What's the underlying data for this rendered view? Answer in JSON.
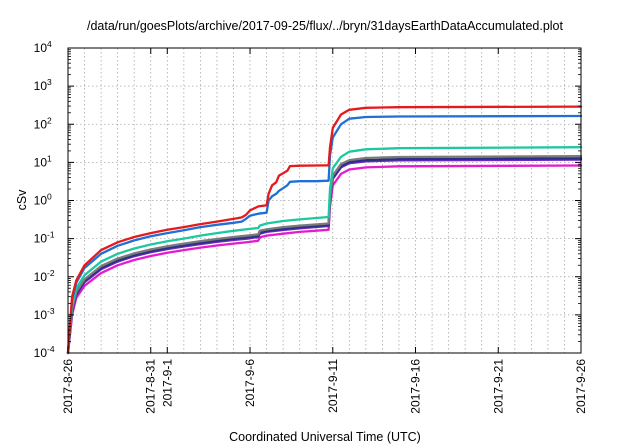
{
  "chart_data": {
    "type": "line",
    "title": "/data/run/goesPlots/archive/2017-09-25/flux/../bryn/31daysEarthDataAccumulated.plot",
    "xlabel": "Coordinated Universal Time (UTC)",
    "ylabel": "cSv",
    "x_scale": "time",
    "y_scale": "log",
    "xlim": [
      "2017-08-26",
      "2017-09-26"
    ],
    "ylim": [
      0.0001,
      10000
    ],
    "grid": true,
    "legend": "none",
    "x_ticks": [
      {
        "x": "2017-08-26",
        "label": "2017-8-26"
      },
      {
        "x": "2017-08-31",
        "label": "2017-8-31"
      },
      {
        "x": "2017-09-01",
        "label": "2017-9-1"
      },
      {
        "x": "2017-09-06",
        "label": "2017-9-6"
      },
      {
        "x": "2017-09-11",
        "label": "2017-9-11"
      },
      {
        "x": "2017-09-16",
        "label": "2017-9-16"
      },
      {
        "x": "2017-09-21",
        "label": "2017-9-21"
      },
      {
        "x": "2017-09-26",
        "label": "2017-9-26"
      }
    ],
    "y_ticks": [
      {
        "value": 0.0001,
        "base": "10",
        "exp": "-4"
      },
      {
        "value": 0.001,
        "base": "10",
        "exp": "-3"
      },
      {
        "value": 0.01,
        "base": "10",
        "exp": "-2"
      },
      {
        "value": 0.1,
        "base": "10",
        "exp": "-1"
      },
      {
        "value": 1,
        "base": "10",
        "exp": "0"
      },
      {
        "value": 10,
        "base": "10",
        "exp": "1"
      },
      {
        "value": 100,
        "base": "10",
        "exp": "2"
      },
      {
        "value": 1000,
        "base": "10",
        "exp": "3"
      },
      {
        "value": 10000,
        "base": "10",
        "exp": "4"
      }
    ],
    "series": [
      {
        "color": "#e41a1c",
        "points": [
          [
            "2017-08-26T00:00",
            0.0001
          ],
          [
            "2017-08-26T06:00",
            0.003
          ],
          [
            "2017-08-26T12:00",
            0.008
          ],
          [
            "2017-08-27T00:00",
            0.02
          ],
          [
            "2017-08-28T00:00",
            0.05
          ],
          [
            "2017-08-29T00:00",
            0.08
          ],
          [
            "2017-08-30T00:00",
            0.11
          ],
          [
            "2017-08-31T00:00",
            0.14
          ],
          [
            "2017-09-01T00:00",
            0.17
          ],
          [
            "2017-09-02T00:00",
            0.2
          ],
          [
            "2017-09-03T00:00",
            0.24
          ],
          [
            "2017-09-04T00:00",
            0.28
          ],
          [
            "2017-09-05T00:00",
            0.33
          ],
          [
            "2017-09-05T12:00",
            0.36
          ],
          [
            "2017-09-05T18:00",
            0.42
          ],
          [
            "2017-09-06T00:00",
            0.55
          ],
          [
            "2017-09-06T12:00",
            0.7
          ],
          [
            "2017-09-07T00:00",
            0.75
          ],
          [
            "2017-09-07T03:00",
            1.5
          ],
          [
            "2017-09-07T08:00",
            2.5
          ],
          [
            "2017-09-07T14:00",
            3.0
          ],
          [
            "2017-09-07T18:00",
            4.5
          ],
          [
            "2017-09-08T00:00",
            5.2
          ],
          [
            "2017-09-08T06:00",
            6.0
          ],
          [
            "2017-09-08T10:00",
            8.0
          ],
          [
            "2017-09-09T00:00",
            8.2
          ],
          [
            "2017-09-10T00:00",
            8.3
          ],
          [
            "2017-09-10T18:00",
            8.4
          ],
          [
            "2017-09-10T20:00",
            25
          ],
          [
            "2017-09-11T00:00",
            80
          ],
          [
            "2017-09-11T12:00",
            180
          ],
          [
            "2017-09-12T00:00",
            240
          ],
          [
            "2017-09-13T00:00",
            270
          ],
          [
            "2017-09-15T00:00",
            280
          ],
          [
            "2017-09-26T00:00",
            290
          ]
        ]
      },
      {
        "color": "#1f6fd6",
        "points": [
          [
            "2017-08-26T00:00",
            0.0001
          ],
          [
            "2017-08-26T06:00",
            0.0025
          ],
          [
            "2017-08-26T12:00",
            0.007
          ],
          [
            "2017-08-27T00:00",
            0.017
          ],
          [
            "2017-08-28T00:00",
            0.04
          ],
          [
            "2017-08-29T00:00",
            0.065
          ],
          [
            "2017-08-30T00:00",
            0.09
          ],
          [
            "2017-08-31T00:00",
            0.115
          ],
          [
            "2017-09-01T00:00",
            0.14
          ],
          [
            "2017-09-02T00:00",
            0.165
          ],
          [
            "2017-09-03T00:00",
            0.2
          ],
          [
            "2017-09-04T00:00",
            0.23
          ],
          [
            "2017-09-05T00:00",
            0.26
          ],
          [
            "2017-09-05T12:00",
            0.28
          ],
          [
            "2017-09-05T18:00",
            0.33
          ],
          [
            "2017-09-06T00:00",
            0.4
          ],
          [
            "2017-09-06T12:00",
            0.45
          ],
          [
            "2017-09-07T00:00",
            0.48
          ],
          [
            "2017-09-07T03:00",
            1.0
          ],
          [
            "2017-09-07T08:00",
            1.3
          ],
          [
            "2017-09-07T14:00",
            1.5
          ],
          [
            "2017-09-07T18:00",
            1.8
          ],
          [
            "2017-09-08T00:00",
            2.1
          ],
          [
            "2017-09-08T06:00",
            2.5
          ],
          [
            "2017-09-08T10:00",
            3.1
          ],
          [
            "2017-09-09T00:00",
            3.2
          ],
          [
            "2017-09-10T00:00",
            3.2
          ],
          [
            "2017-09-10T18:00",
            3.3
          ],
          [
            "2017-09-10T20:00",
            15
          ],
          [
            "2017-09-11T00:00",
            45
          ],
          [
            "2017-09-11T12:00",
            100
          ],
          [
            "2017-09-12T00:00",
            140
          ],
          [
            "2017-09-13T00:00",
            155
          ],
          [
            "2017-09-15T00:00",
            160
          ],
          [
            "2017-09-26T00:00",
            165
          ]
        ]
      },
      {
        "color": "#1dc8a0",
        "points": [
          [
            "2017-08-26T00:00",
            0.0001
          ],
          [
            "2017-08-26T06:00",
            0.0018
          ],
          [
            "2017-08-26T12:00",
            0.005
          ],
          [
            "2017-08-27T00:00",
            0.011
          ],
          [
            "2017-08-28T00:00",
            0.025
          ],
          [
            "2017-08-29T00:00",
            0.04
          ],
          [
            "2017-08-30T00:00",
            0.055
          ],
          [
            "2017-08-31T00:00",
            0.07
          ],
          [
            "2017-09-01T00:00",
            0.085
          ],
          [
            "2017-09-02T00:00",
            0.1
          ],
          [
            "2017-09-03T00:00",
            0.12
          ],
          [
            "2017-09-04T00:00",
            0.14
          ],
          [
            "2017-09-05T00:00",
            0.16
          ],
          [
            "2017-09-06T00:00",
            0.18
          ],
          [
            "2017-09-06T12:00",
            0.19
          ],
          [
            "2017-09-06T14:00",
            0.22
          ],
          [
            "2017-09-07T00:00",
            0.25
          ],
          [
            "2017-09-08T00:00",
            0.29
          ],
          [
            "2017-09-09T00:00",
            0.32
          ],
          [
            "2017-09-10T18:00",
            0.37
          ],
          [
            "2017-09-10T20:00",
            2.0
          ],
          [
            "2017-09-11T00:00",
            7
          ],
          [
            "2017-09-11T12:00",
            14
          ],
          [
            "2017-09-12T00:00",
            19
          ],
          [
            "2017-09-13T00:00",
            22
          ],
          [
            "2017-09-15T00:00",
            23.5
          ],
          [
            "2017-09-26T00:00",
            25
          ]
        ]
      },
      {
        "color": "#7a7a7a",
        "points": [
          [
            "2017-08-26T00:00",
            0.0001
          ],
          [
            "2017-08-26T06:00",
            0.0014
          ],
          [
            "2017-08-26T12:00",
            0.004
          ],
          [
            "2017-08-27T00:00",
            0.0085
          ],
          [
            "2017-08-28T00:00",
            0.019
          ],
          [
            "2017-08-29T00:00",
            0.03
          ],
          [
            "2017-08-30T00:00",
            0.041
          ],
          [
            "2017-08-31T00:00",
            0.052
          ],
          [
            "2017-09-01T00:00",
            0.063
          ],
          [
            "2017-09-02T00:00",
            0.074
          ],
          [
            "2017-09-03T00:00",
            0.086
          ],
          [
            "2017-09-04T00:00",
            0.098
          ],
          [
            "2017-09-05T00:00",
            0.11
          ],
          [
            "2017-09-06T00:00",
            0.122
          ],
          [
            "2017-09-06T12:00",
            0.13
          ],
          [
            "2017-09-06T14:00",
            0.16
          ],
          [
            "2017-09-07T00:00",
            0.175
          ],
          [
            "2017-09-08T00:00",
            0.2
          ],
          [
            "2017-09-09T00:00",
            0.22
          ],
          [
            "2017-09-10T18:00",
            0.25
          ],
          [
            "2017-09-10T20:00",
            1.2
          ],
          [
            "2017-09-11T00:00",
            4.5
          ],
          [
            "2017-09-11T12:00",
            9
          ],
          [
            "2017-09-12T00:00",
            11.5
          ],
          [
            "2017-09-13T00:00",
            13
          ],
          [
            "2017-09-15T00:00",
            13.8
          ],
          [
            "2017-09-26T00:00",
            14.5
          ]
        ]
      },
      {
        "color": "#2a2f80",
        "points": [
          [
            "2017-08-26T00:00",
            0.0001
          ],
          [
            "2017-08-26T06:00",
            0.0013
          ],
          [
            "2017-08-26T12:00",
            0.0036
          ],
          [
            "2017-08-27T00:00",
            0.0078
          ],
          [
            "2017-08-28T00:00",
            0.017
          ],
          [
            "2017-08-29T00:00",
            0.027
          ],
          [
            "2017-08-30T00:00",
            0.037
          ],
          [
            "2017-08-31T00:00",
            0.047
          ],
          [
            "2017-09-01T00:00",
            0.057
          ],
          [
            "2017-09-02T00:00",
            0.067
          ],
          [
            "2017-09-03T00:00",
            0.078
          ],
          [
            "2017-09-04T00:00",
            0.089
          ],
          [
            "2017-09-05T00:00",
            0.1
          ],
          [
            "2017-09-06T00:00",
            0.11
          ],
          [
            "2017-09-06T12:00",
            0.118
          ],
          [
            "2017-09-06T14:00",
            0.145
          ],
          [
            "2017-09-07T00:00",
            0.16
          ],
          [
            "2017-09-08T00:00",
            0.18
          ],
          [
            "2017-09-09T00:00",
            0.2
          ],
          [
            "2017-09-10T18:00",
            0.23
          ],
          [
            "2017-09-10T20:00",
            1.1
          ],
          [
            "2017-09-11T00:00",
            4.0
          ],
          [
            "2017-09-11T12:00",
            8.0
          ],
          [
            "2017-09-12T00:00",
            10.2
          ],
          [
            "2017-09-13T00:00",
            11.5
          ],
          [
            "2017-09-15T00:00",
            12.2
          ],
          [
            "2017-09-26T00:00",
            12.8
          ]
        ]
      },
      {
        "color": "#6a2ac0",
        "points": [
          [
            "2017-08-26T00:00",
            0.0001
          ],
          [
            "2017-08-26T06:00",
            0.0012
          ],
          [
            "2017-08-26T12:00",
            0.0033
          ],
          [
            "2017-08-27T00:00",
            0.0072
          ],
          [
            "2017-08-28T00:00",
            0.0158
          ],
          [
            "2017-08-29T00:00",
            0.025
          ],
          [
            "2017-08-30T00:00",
            0.0345
          ],
          [
            "2017-08-31T00:00",
            0.044
          ],
          [
            "2017-09-01T00:00",
            0.053
          ],
          [
            "2017-09-02T00:00",
            0.062
          ],
          [
            "2017-09-03T00:00",
            0.072
          ],
          [
            "2017-09-04T00:00",
            0.082
          ],
          [
            "2017-09-05T00:00",
            0.092
          ],
          [
            "2017-09-06T00:00",
            0.102
          ],
          [
            "2017-09-06T12:00",
            0.11
          ],
          [
            "2017-09-06T14:00",
            0.135
          ],
          [
            "2017-09-07T00:00",
            0.15
          ],
          [
            "2017-09-08T00:00",
            0.168
          ],
          [
            "2017-09-09T00:00",
            0.186
          ],
          [
            "2017-09-10T18:00",
            0.215
          ],
          [
            "2017-09-10T20:00",
            1.0
          ],
          [
            "2017-09-11T00:00",
            3.7
          ],
          [
            "2017-09-11T12:00",
            7.4
          ],
          [
            "2017-09-12T00:00",
            9.5
          ],
          [
            "2017-09-13T00:00",
            10.7
          ],
          [
            "2017-09-15T00:00",
            11.3
          ],
          [
            "2017-09-26T00:00",
            11.8
          ]
        ]
      },
      {
        "color": "#e31ccf",
        "points": [
          [
            "2017-08-26T00:00",
            0.0001
          ],
          [
            "2017-08-26T06:00",
            0.001
          ],
          [
            "2017-08-26T12:00",
            0.0028
          ],
          [
            "2017-08-27T00:00",
            0.0058
          ],
          [
            "2017-08-28T00:00",
            0.0125
          ],
          [
            "2017-08-29T00:00",
            0.02
          ],
          [
            "2017-08-30T00:00",
            0.0275
          ],
          [
            "2017-08-31T00:00",
            0.035
          ],
          [
            "2017-09-01T00:00",
            0.0425
          ],
          [
            "2017-09-02T00:00",
            0.05
          ],
          [
            "2017-09-03T00:00",
            0.058
          ],
          [
            "2017-09-04T00:00",
            0.066
          ],
          [
            "2017-09-05T00:00",
            0.074
          ],
          [
            "2017-09-06T00:00",
            0.082
          ],
          [
            "2017-09-06T12:00",
            0.088
          ],
          [
            "2017-09-06T14:00",
            0.108
          ],
          [
            "2017-09-07T00:00",
            0.12
          ],
          [
            "2017-09-08T00:00",
            0.135
          ],
          [
            "2017-09-09T00:00",
            0.15
          ],
          [
            "2017-09-10T18:00",
            0.17
          ],
          [
            "2017-09-10T20:00",
            0.7
          ],
          [
            "2017-09-11T00:00",
            2.5
          ],
          [
            "2017-09-11T12:00",
            5.0
          ],
          [
            "2017-09-12T00:00",
            6.5
          ],
          [
            "2017-09-13T00:00",
            7.4
          ],
          [
            "2017-09-15T00:00",
            7.9
          ],
          [
            "2017-09-26T00:00",
            8.3
          ]
        ]
      }
    ]
  }
}
